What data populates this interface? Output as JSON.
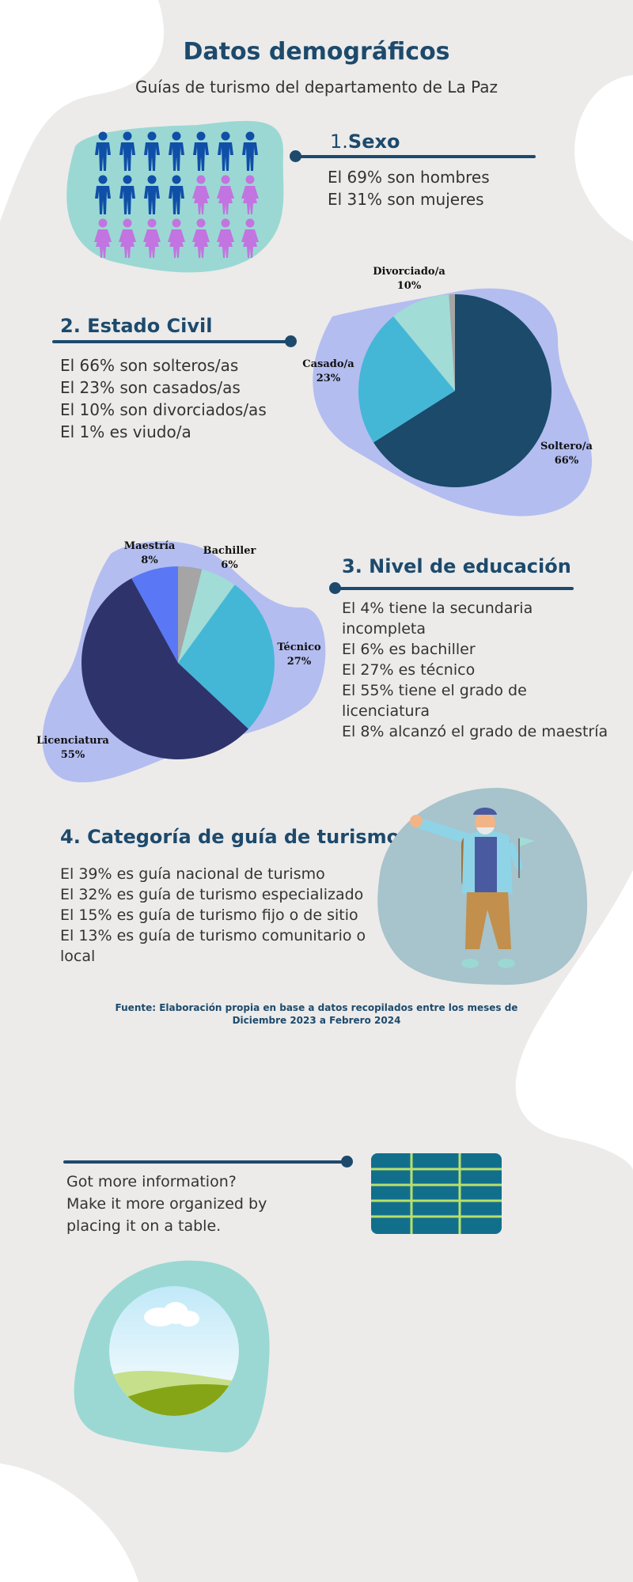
{
  "title": "Datos demográficos",
  "subtitle": "Guías de turismo del departamento de La Paz",
  "colors": {
    "accent": "#1d4a6c",
    "blob_teal": "#9bd8d3",
    "blob_lavender": "#b3bdf0",
    "blob_grey": "#a7c3cb"
  },
  "sections": {
    "sexo": {
      "number": "1.",
      "heading": "Sexo",
      "lines": [
        "El 69% son hombres",
        "El 31% son mujeres"
      ],
      "icon_counts": {
        "male": 11,
        "female": 10
      }
    },
    "estado_civil": {
      "heading": "2. Estado Civil",
      "lines": [
        "El 66% son solteros/as",
        "El 23% son casados/as",
        "El 10% son divorciados/as",
        "El 1% es viudo/a"
      ]
    },
    "educacion": {
      "heading": "3. Nivel de educación",
      "lines": [
        "El 4% tiene la secundaria",
        "incompleta",
        "El 6% es bachiller",
        "El 27% es técnico",
        "El 55% tiene el grado de",
        "licenciatura",
        "El 8% alcanzó el grado de maestría"
      ]
    },
    "categoria": {
      "heading": "4. Categoría de guía de turismo",
      "lines": [
        "El 39% es guía nacional de turismo",
        "El 32% es guía de turismo especializado",
        "El 15% es guía de turismo fijo o de sitio",
        "El 13% es guía de turismo comunitario o",
        "local"
      ]
    }
  },
  "source_note": {
    "line1": "Fuente: Elaboración propia en base a datos recopilados entre los meses de",
    "line2": "Diciembre 2023 a Febrero 2024"
  },
  "promo": {
    "lines": [
      "Got more information?",
      "Make it more organized by",
      "placing it on a table."
    ]
  },
  "chart_data": [
    {
      "type": "pie",
      "categories": [
        "Soltero/a",
        "Casado/a",
        "Divorciado/a",
        "Viudo/a"
      ],
      "values": [
        66,
        23,
        10,
        1
      ],
      "labels": {
        "Soltero/a": {
          "name": "Soltero/a",
          "value": "66%"
        },
        "Casado/a": {
          "name": "Casado/a",
          "value": "23%"
        },
        "Divorciado/a": {
          "name": "Divorciado/a",
          "value": "10%"
        }
      },
      "colors": [
        "#1b4a6b",
        "#44b7d6",
        "#a1dcd7",
        "#a5a5a5"
      ]
    },
    {
      "type": "pie",
      "categories": [
        "Secundaria incompleta",
        "Bachiller",
        "Técnico",
        "Licenciatura",
        "Maestría"
      ],
      "values": [
        4,
        6,
        27,
        55,
        8
      ],
      "labels": {
        "Bachiller": {
          "name": "Bachiller",
          "value": "6%"
        },
        "Técnico": {
          "name": "Técnico",
          "value": "27%"
        },
        "Licenciatura": {
          "name": "Licenciatura",
          "value": "55%"
        },
        "Maestría": {
          "name": "Maestría",
          "value": "8%"
        }
      },
      "colors": [
        "#a5a5a5",
        "#a1dcd7",
        "#44b7d6",
        "#2f336b",
        "#5a78f5"
      ]
    }
  ]
}
